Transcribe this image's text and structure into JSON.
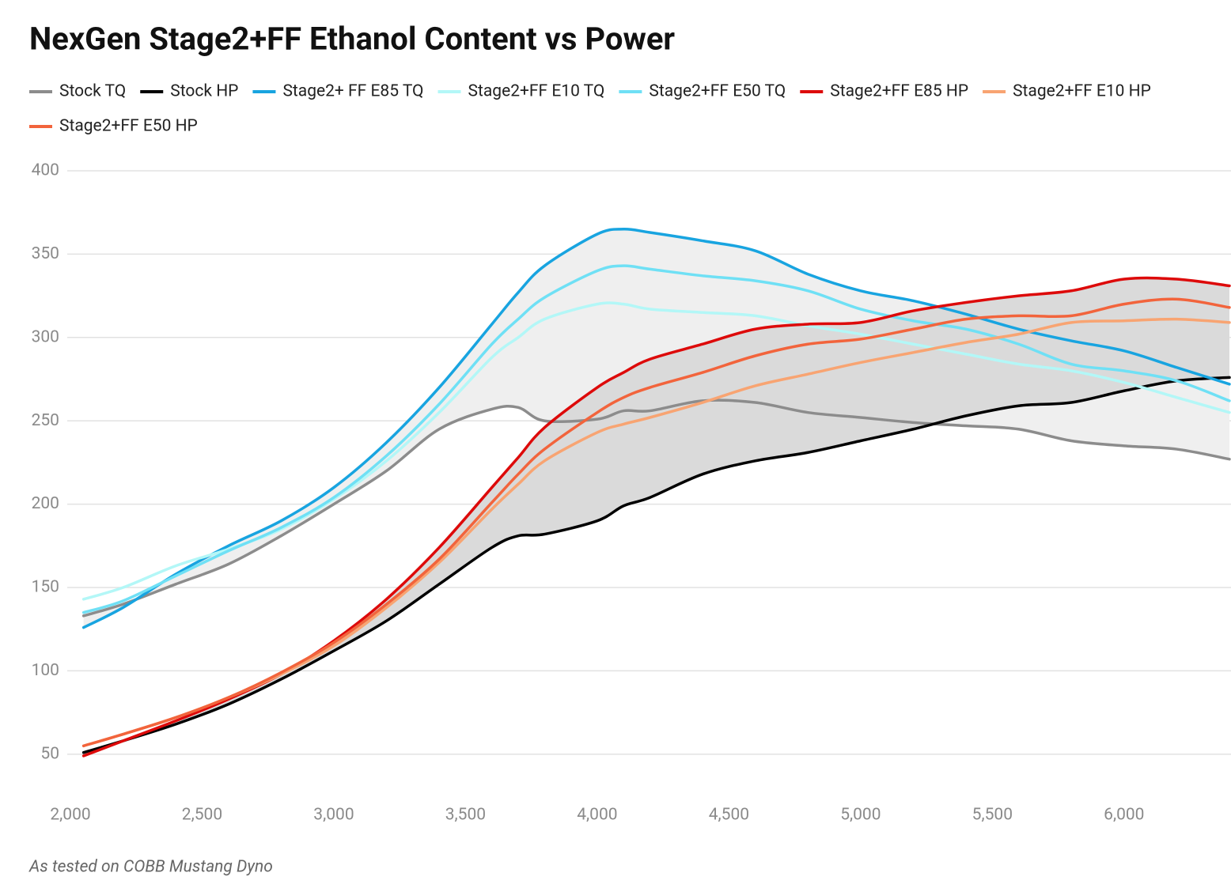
{
  "chart_data": {
    "type": "line",
    "title": "NexGen Stage2+FF Ethanol Content vs Power",
    "note": "As tested on COBB Mustang Dyno",
    "x": [
      2050,
      2200,
      2400,
      2600,
      2800,
      3000,
      3200,
      3400,
      3600,
      3700,
      3800,
      4000,
      4100,
      4200,
      4400,
      4600,
      4800,
      5000,
      5200,
      5400,
      5600,
      5800,
      6000,
      6200,
      6400
    ],
    "series": [
      {
        "name": "Stock TQ",
        "color": "#8c8c8c",
        "values": [
          133,
          140,
          152,
          164,
          181,
          200,
          220,
          245,
          257,
          258,
          250,
          251,
          256,
          256,
          262,
          261,
          255,
          252,
          249,
          247,
          245,
          238,
          235,
          233,
          227
        ]
      },
      {
        "name": "Stock HP",
        "color": "#000000",
        "values": [
          51,
          58,
          68,
          80,
          95,
          112,
          130,
          152,
          174,
          181,
          182,
          190,
          199,
          204,
          218,
          226,
          231,
          238,
          245,
          253,
          259,
          261,
          268,
          274,
          276
        ]
      },
      {
        "name": "Stage2+ FF E85 TQ",
        "color": "#18a4e0",
        "values": [
          126,
          138,
          158,
          175,
          190,
          210,
          237,
          270,
          308,
          327,
          343,
          362,
          365,
          363,
          358,
          352,
          338,
          328,
          322,
          314,
          305,
          298,
          292,
          282,
          272
        ]
      },
      {
        "name": "Stage2+FF E10 TQ",
        "color": "#b3f7f7",
        "values": [
          143,
          150,
          163,
          173,
          185,
          203,
          226,
          255,
          288,
          300,
          311,
          320,
          320,
          317,
          315,
          313,
          307,
          302,
          296,
          290,
          284,
          280,
          273,
          264,
          255
        ]
      },
      {
        "name": "Stage2+FF E50 TQ",
        "color": "#6fe0f5",
        "values": [
          135,
          142,
          157,
          172,
          186,
          204,
          229,
          260,
          296,
          311,
          324,
          340,
          343,
          341,
          337,
          334,
          328,
          317,
          310,
          305,
          296,
          284,
          280,
          274,
          262
        ]
      },
      {
        "name": "Stage2+FF E85 HP",
        "color": "#dd0a0a",
        "values": [
          49,
          58,
          70,
          83,
          98,
          118,
          143,
          174,
          210,
          228,
          246,
          270,
          279,
          287,
          296,
          305,
          308,
          309,
          316,
          321,
          325,
          328,
          335,
          335,
          331
        ]
      },
      {
        "name": "Stage2+FF E10 HP",
        "color": "#f8a472",
        "values": [
          55,
          62,
          72,
          84,
          98,
          115,
          138,
          165,
          197,
          212,
          226,
          243,
          248,
          252,
          261,
          271,
          278,
          285,
          291,
          297,
          302,
          309,
          310,
          311,
          309
        ]
      },
      {
        "name": "Stage2+FF E50 HP",
        "color": "#f2643c",
        "values": [
          55,
          62,
          72,
          84,
          99,
          117,
          140,
          167,
          201,
          218,
          233,
          255,
          264,
          270,
          279,
          289,
          296,
          299,
          305,
          311,
          313,
          313,
          320,
          323,
          318
        ]
      }
    ],
    "area_fills": [
      {
        "between": [
          "Stock TQ",
          "Stage2+ FF E85 TQ"
        ],
        "color": "#efefef"
      },
      {
        "between": [
          "Stock HP",
          "Stage2+FF E85 HP"
        ],
        "color": "#dadada"
      }
    ],
    "xlim": [
      2000,
      6400
    ],
    "ylim": [
      30,
      400
    ],
    "xticks": [
      {
        "value": 2000,
        "label": "2,000"
      },
      {
        "value": 2500,
        "label": "2,500"
      },
      {
        "value": 3000,
        "label": "3,000"
      },
      {
        "value": 3500,
        "label": "3,500"
      },
      {
        "value": 4000,
        "label": "4,000"
      },
      {
        "value": 4500,
        "label": "4,500"
      },
      {
        "value": 5000,
        "label": "5,000"
      },
      {
        "value": 5500,
        "label": "5,500"
      },
      {
        "value": 6000,
        "label": "6,000"
      }
    ],
    "yticks": [
      50,
      100,
      150,
      200,
      250,
      300,
      350,
      400
    ],
    "grid": true,
    "legend": "top"
  }
}
